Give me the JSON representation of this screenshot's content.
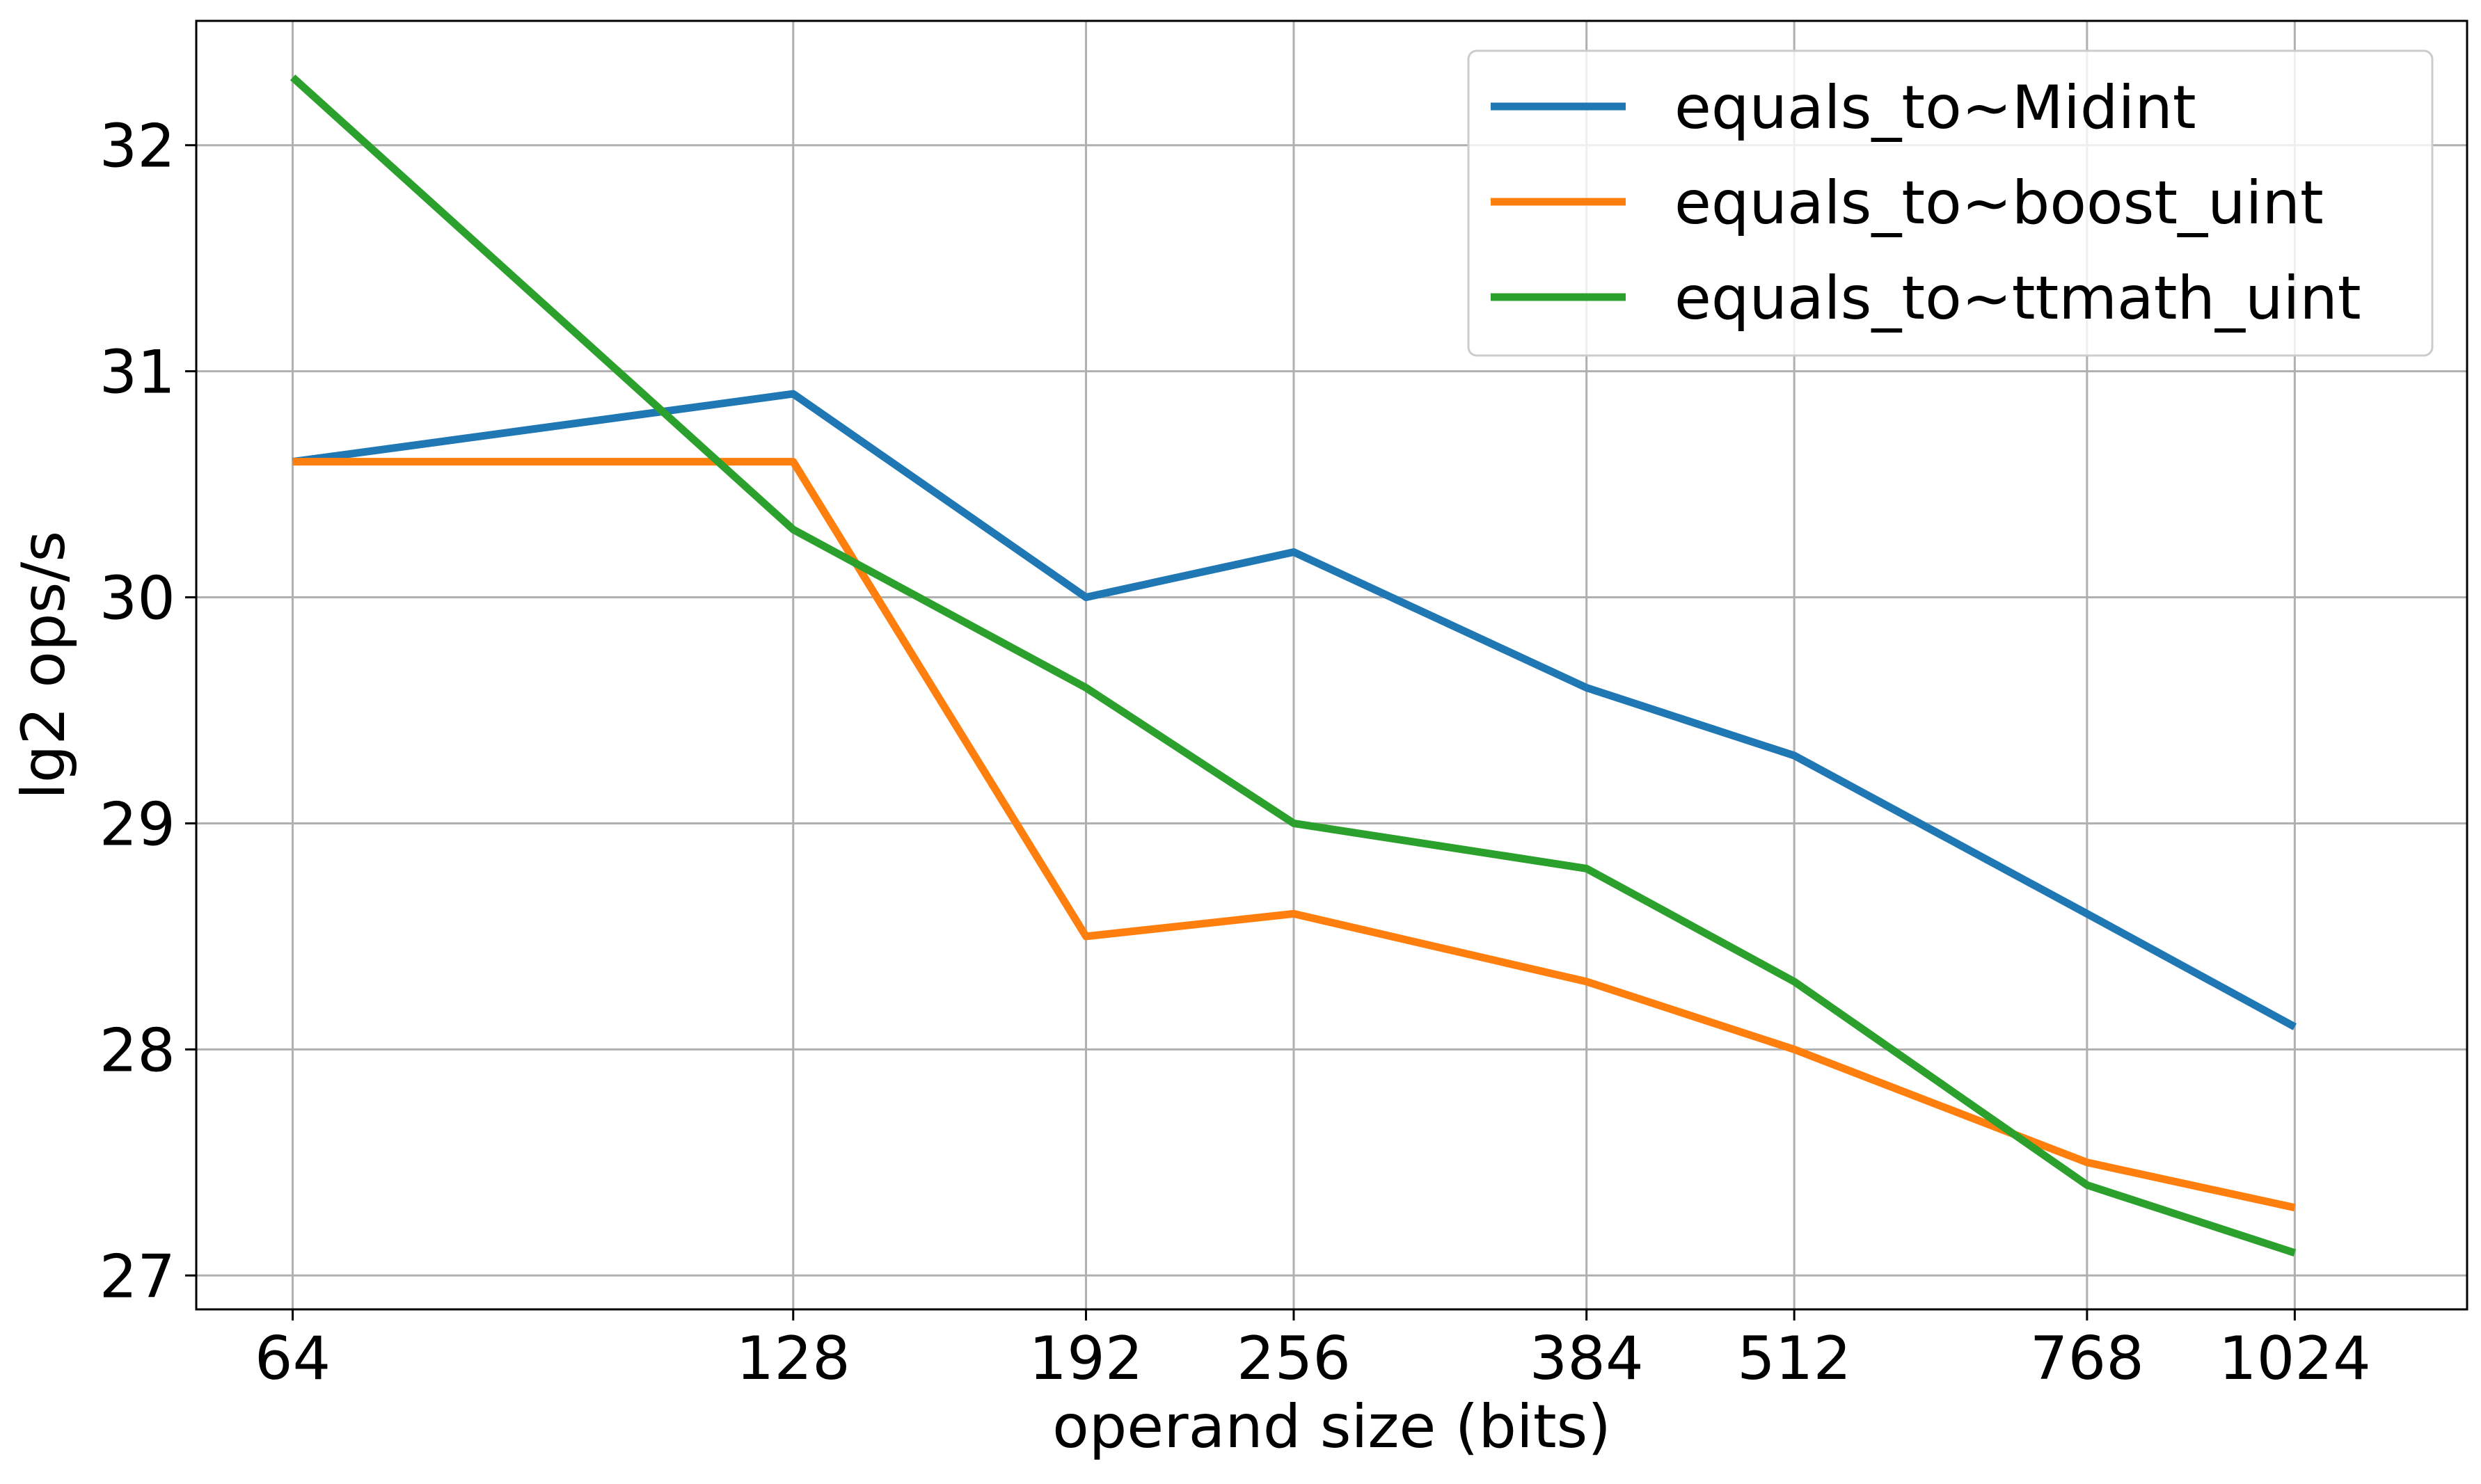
{
  "chart_data": {
    "type": "line",
    "title": "",
    "xlabel": "operand size (bits)",
    "ylabel": "lg2 ops/s",
    "x_scale": "log2",
    "x": [
      64,
      128,
      192,
      256,
      384,
      512,
      768,
      1024
    ],
    "x_tick_labels": [
      "64",
      "128",
      "192",
      "256",
      "384",
      "512",
      "768",
      "1024"
    ],
    "xlim": [
      56,
      1300
    ],
    "ylim": [
      26.85,
      32.55
    ],
    "y_ticks": [
      27,
      28,
      29,
      30,
      31,
      32
    ],
    "y_tick_labels": [
      "27",
      "28",
      "29",
      "30",
      "31",
      "32"
    ],
    "grid": true,
    "legend_position": "top-right",
    "series": [
      {
        "name": "equals_to~Midint",
        "color": "#1f77b4",
        "values": [
          30.6,
          30.9,
          30.0,
          30.2,
          29.6,
          29.3,
          28.6,
          28.1
        ]
      },
      {
        "name": "equals_to~boost_uint",
        "color": "#ff7f0e",
        "values": [
          30.6,
          30.6,
          28.5,
          28.6,
          28.3,
          28.0,
          27.5,
          27.3
        ]
      },
      {
        "name": "equals_to~ttmath_uint",
        "color": "#2ca02c",
        "values": [
          32.3,
          30.3,
          29.6,
          29.0,
          28.8,
          28.3,
          27.4,
          27.1
        ]
      }
    ]
  }
}
